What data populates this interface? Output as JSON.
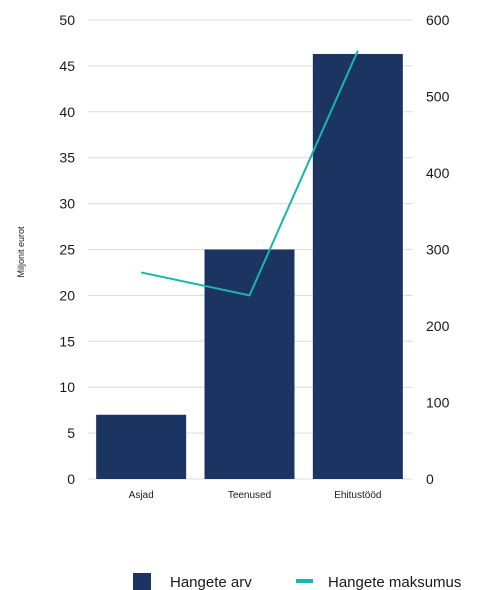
{
  "chart_data": {
    "type": "bar",
    "categories": [
      "Asjad",
      "Teenused",
      "Ehitustööd"
    ],
    "series": [
      {
        "name": "Hangete arv",
        "type": "bar",
        "axis": "left",
        "values": [
          7,
          25,
          46.3
        ],
        "color": "#1c3461"
      },
      {
        "name": "Hangete maksumus",
        "type": "line",
        "axis": "right",
        "values": [
          270,
          240,
          560
        ],
        "color": "#1ab5ad"
      }
    ],
    "ylabel": "Miljonit eurot",
    "ylim": [
      0,
      50
    ],
    "y_ticks": [
      "0",
      "5",
      "10",
      "15",
      "20",
      "25",
      "30",
      "35",
      "40",
      "45",
      "50"
    ],
    "y2lim": [
      0,
      600
    ],
    "y2_ticks": [
      "0",
      "100",
      "200",
      "300",
      "400",
      "500",
      "600"
    ],
    "grid": true,
    "legend_position": "bottom-right"
  }
}
